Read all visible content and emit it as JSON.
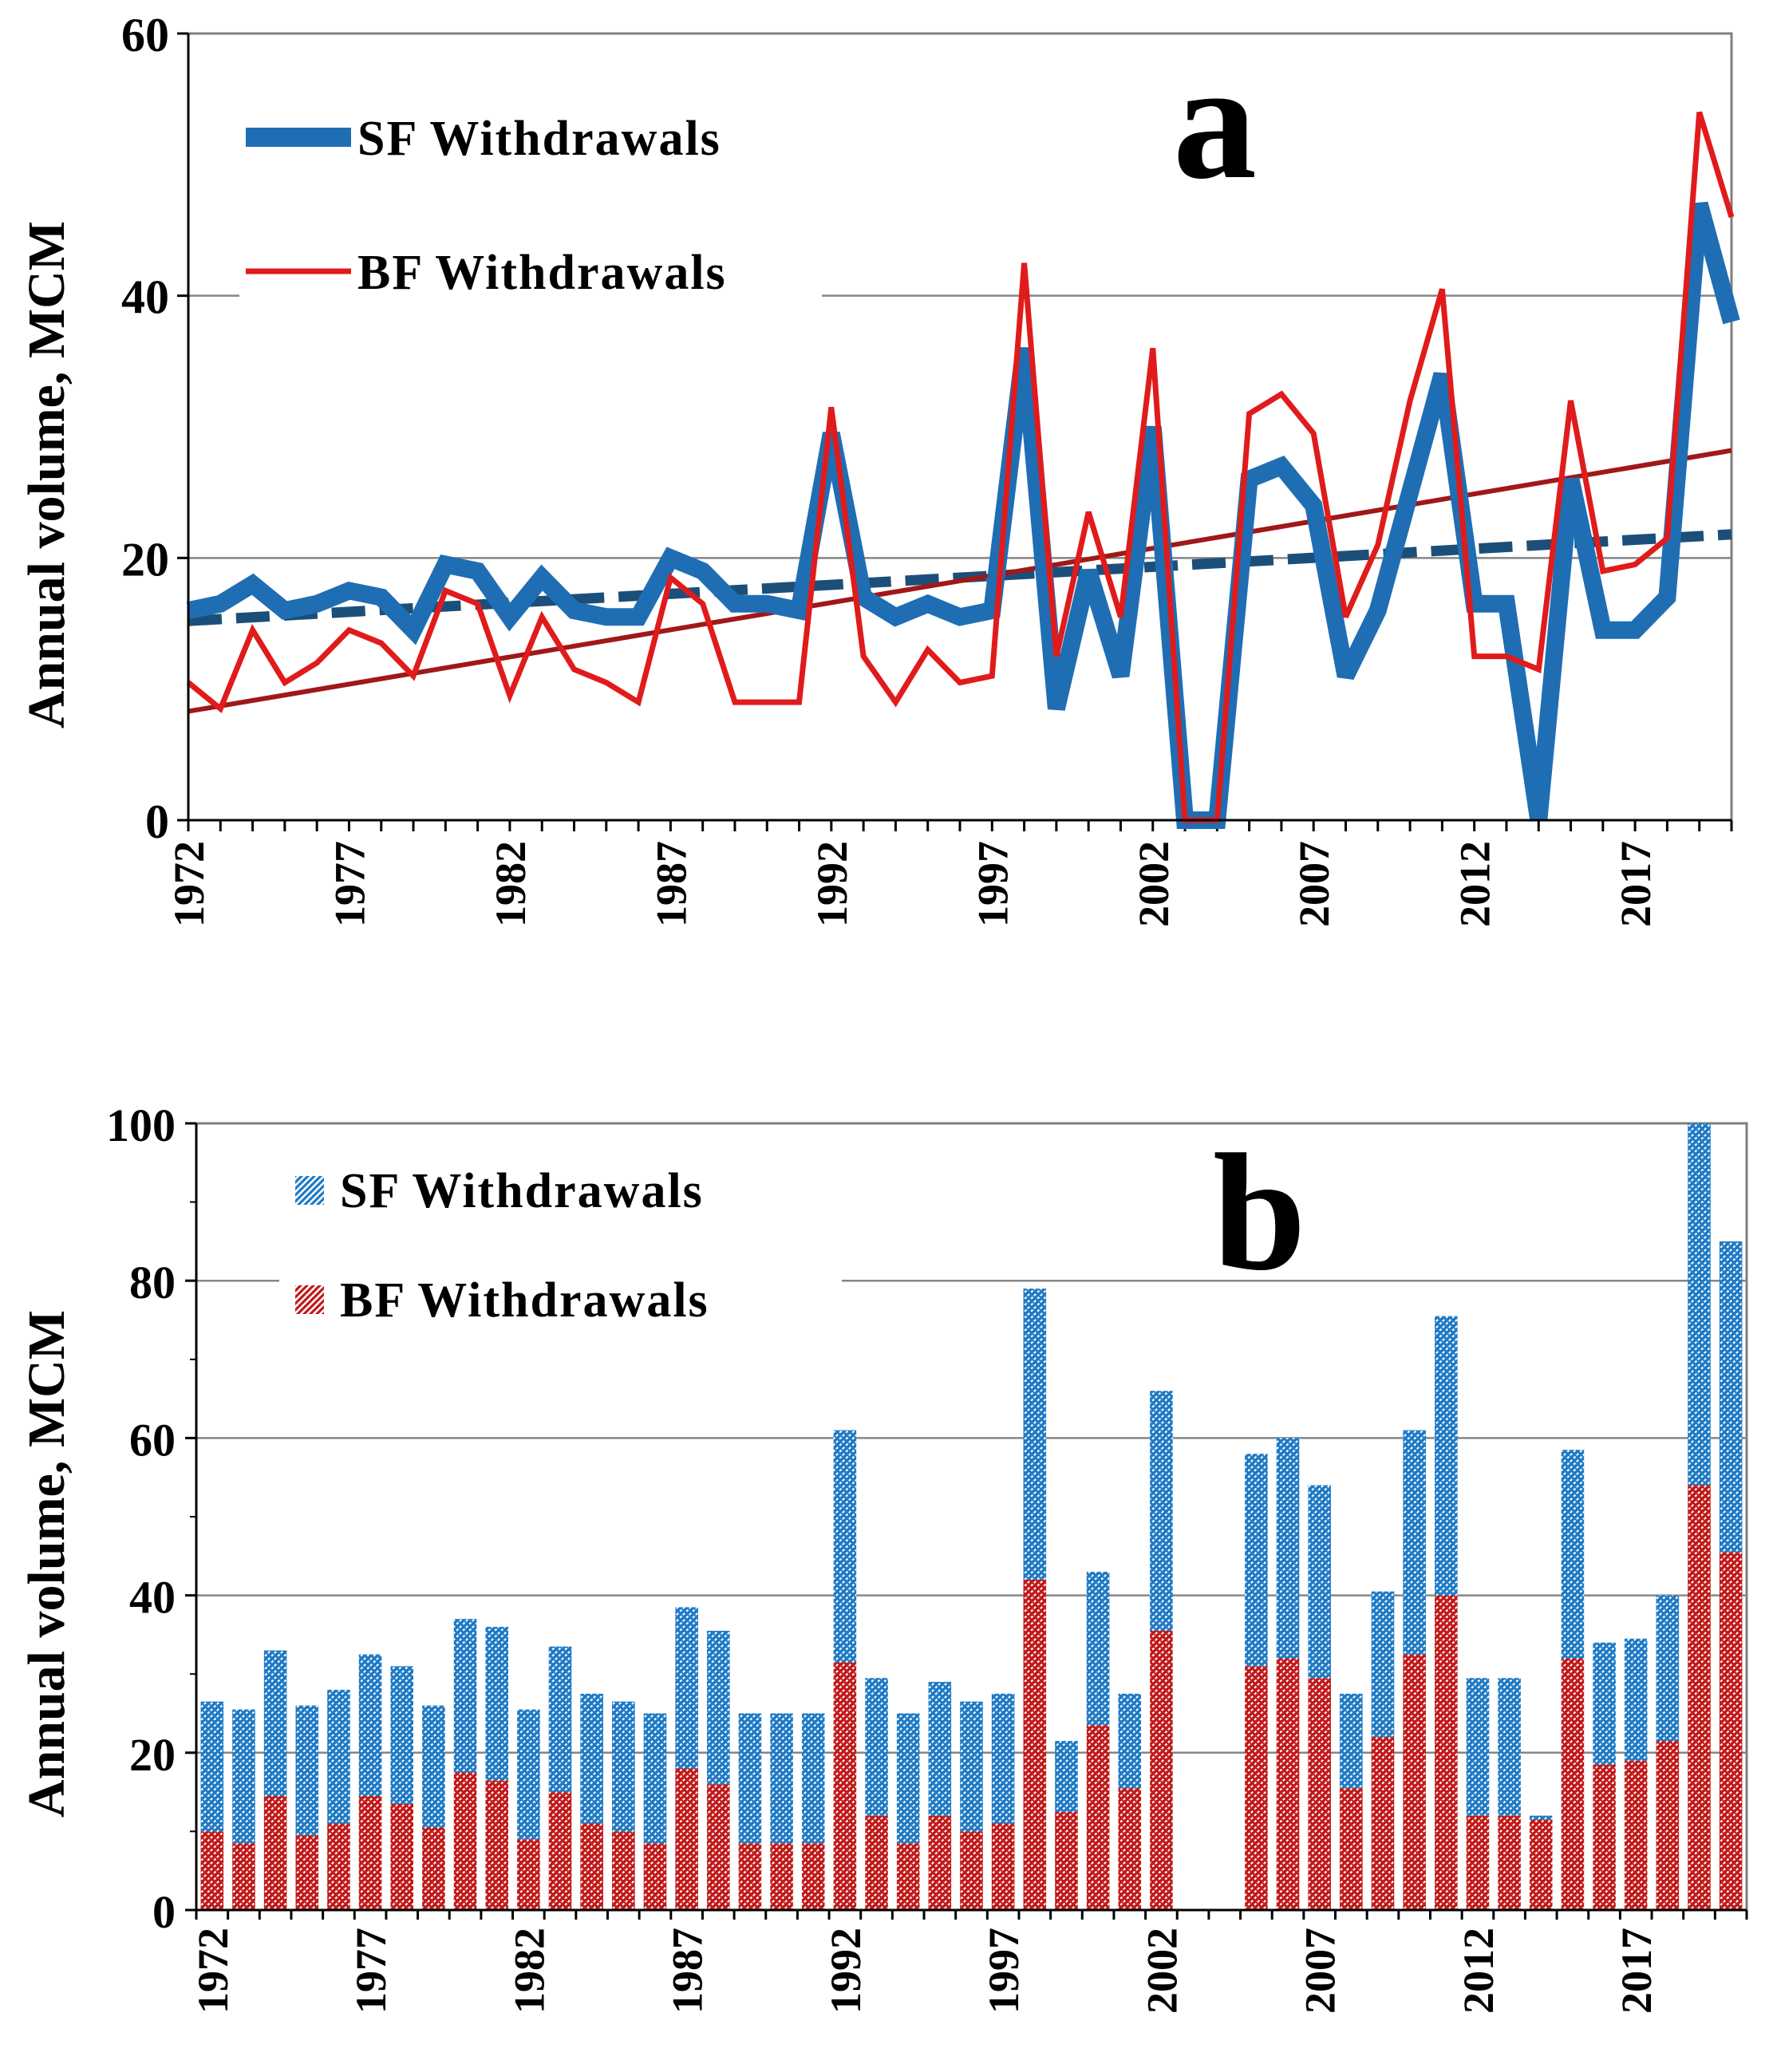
{
  "chart_data": [
    {
      "panel": "a",
      "type": "line",
      "panel_label": "a",
      "ylabel": "Annual  volume, MCM",
      "ylim": [
        0,
        60
      ],
      "yticks": [
        0,
        20,
        40,
        60
      ],
      "xtick_labels": [
        "1972",
        "1977",
        "1982",
        "1987",
        "1992",
        "1997",
        "2002",
        "2007",
        "2012",
        "2017"
      ],
      "years": [
        1972,
        1973,
        1974,
        1975,
        1976,
        1977,
        1978,
        1979,
        1980,
        1981,
        1982,
        1983,
        1984,
        1985,
        1986,
        1987,
        1988,
        1989,
        1990,
        1991,
        1992,
        1993,
        1994,
        1995,
        1996,
        1997,
        1998,
        1999,
        2000,
        2001,
        2002,
        2003,
        2004,
        2005,
        2006,
        2007,
        2008,
        2009,
        2010,
        2011,
        2012,
        2013,
        2014,
        2015,
        2016,
        2017,
        2018,
        2019,
        2020
      ],
      "grid": "horizontal",
      "series": [
        {
          "name": "SF  Withdrawals",
          "color": "#1f6eb4",
          "style": "thick",
          "values": [
            16,
            16.5,
            18,
            16,
            16.5,
            17.5,
            17,
            14.5,
            19.5,
            19,
            15.5,
            18.5,
            16,
            15.5,
            15.5,
            20,
            19,
            16.5,
            16.5,
            16,
            29.5,
            17,
            15.5,
            16.5,
            15.5,
            16,
            36,
            8.5,
            19,
            11,
            30,
            0,
            0,
            26,
            27,
            24,
            11,
            16,
            25,
            34,
            16.5,
            16.5,
            0,
            26,
            14.5,
            14.5,
            17,
            47,
            38
          ]
        },
        {
          "name": "BF  Withdrawals",
          "color": "#e01b1b",
          "style": "thin",
          "values": [
            10.5,
            8.5,
            14.5,
            10.5,
            12,
            14.5,
            13.5,
            11,
            17.5,
            16.5,
            9.5,
            15.5,
            11.5,
            10.5,
            9,
            18.5,
            16.5,
            9,
            9,
            9,
            31.5,
            12.5,
            9,
            13,
            10.5,
            11,
            42.5,
            12.5,
            23.5,
            15.5,
            36,
            0,
            0,
            31,
            32.5,
            29.5,
            15.5,
            21,
            32,
            40.5,
            12.5,
            12.5,
            11.5,
            32,
            19,
            19.5,
            21.5,
            54,
            46
          ]
        }
      ],
      "trendlines": [
        {
          "series": "SF  Withdrawals",
          "color": "#1b4f7a",
          "style": "dashed",
          "from": [
            1972,
            15.2
          ],
          "to": [
            2020,
            21.8
          ]
        },
        {
          "series": "BF  Withdrawals",
          "color": "#a01818",
          "style": "solid",
          "from": [
            1972,
            8.3
          ],
          "to": [
            2020,
            28.2
          ]
        }
      ]
    },
    {
      "panel": "b",
      "type": "bar",
      "stacked": true,
      "panel_label": "b",
      "ylabel": "Annual  volume, MCM",
      "ylim": [
        0,
        100
      ],
      "yticks": [
        0,
        20,
        40,
        60,
        80,
        100
      ],
      "xtick_labels": [
        "1972",
        "1977",
        "1982",
        "1987",
        "1992",
        "1997",
        "2002",
        "2007",
        "2012",
        "2017"
      ],
      "years": [
        1972,
        1973,
        1974,
        1975,
        1976,
        1977,
        1978,
        1979,
        1980,
        1981,
        1982,
        1983,
        1984,
        1985,
        1986,
        1987,
        1988,
        1989,
        1990,
        1991,
        1992,
        1993,
        1994,
        1995,
        1996,
        1997,
        1998,
        1999,
        2000,
        2001,
        2002,
        2003,
        2004,
        2005,
        2006,
        2007,
        2008,
        2009,
        2010,
        2011,
        2012,
        2013,
        2014,
        2015,
        2016,
        2017,
        2018,
        2019,
        2020
      ],
      "grid": "horizontal",
      "series": [
        {
          "name": "BF  Withdrawals",
          "color": "#c01a1a",
          "values": [
            10,
            8.5,
            14.5,
            9.5,
            11,
            14.5,
            13.5,
            10.5,
            17.5,
            16.5,
            9,
            15,
            11,
            10,
            8.5,
            18,
            16,
            8.5,
            8.5,
            8.5,
            31.5,
            12,
            8.5,
            12,
            10,
            11,
            42,
            12.5,
            23.5,
            15.5,
            35.5,
            0,
            0,
            31,
            32,
            29.5,
            15.5,
            22,
            32.5,
            40,
            12,
            12,
            11.5,
            32,
            18.5,
            19,
            21.5,
            54,
            45.5
          ]
        },
        {
          "name": "SF  Withdrawals",
          "color": "#1f7ac4",
          "values": [
            16.5,
            17,
            18.5,
            16.5,
            17,
            18,
            17.5,
            15.5,
            19.5,
            19.5,
            16.5,
            18.5,
            16.5,
            16.5,
            16.5,
            20.5,
            19.5,
            16.5,
            16.5,
            16.5,
            29.5,
            17.5,
            16.5,
            17,
            16.5,
            16.5,
            37,
            9,
            19.5,
            12,
            30.5,
            0,
            0,
            27,
            28,
            24.5,
            12,
            18.5,
            28.5,
            35.5,
            17.5,
            17.5,
            0.5,
            26.5,
            15.5,
            15.5,
            18.5,
            46,
            39.5
          ]
        }
      ]
    }
  ]
}
